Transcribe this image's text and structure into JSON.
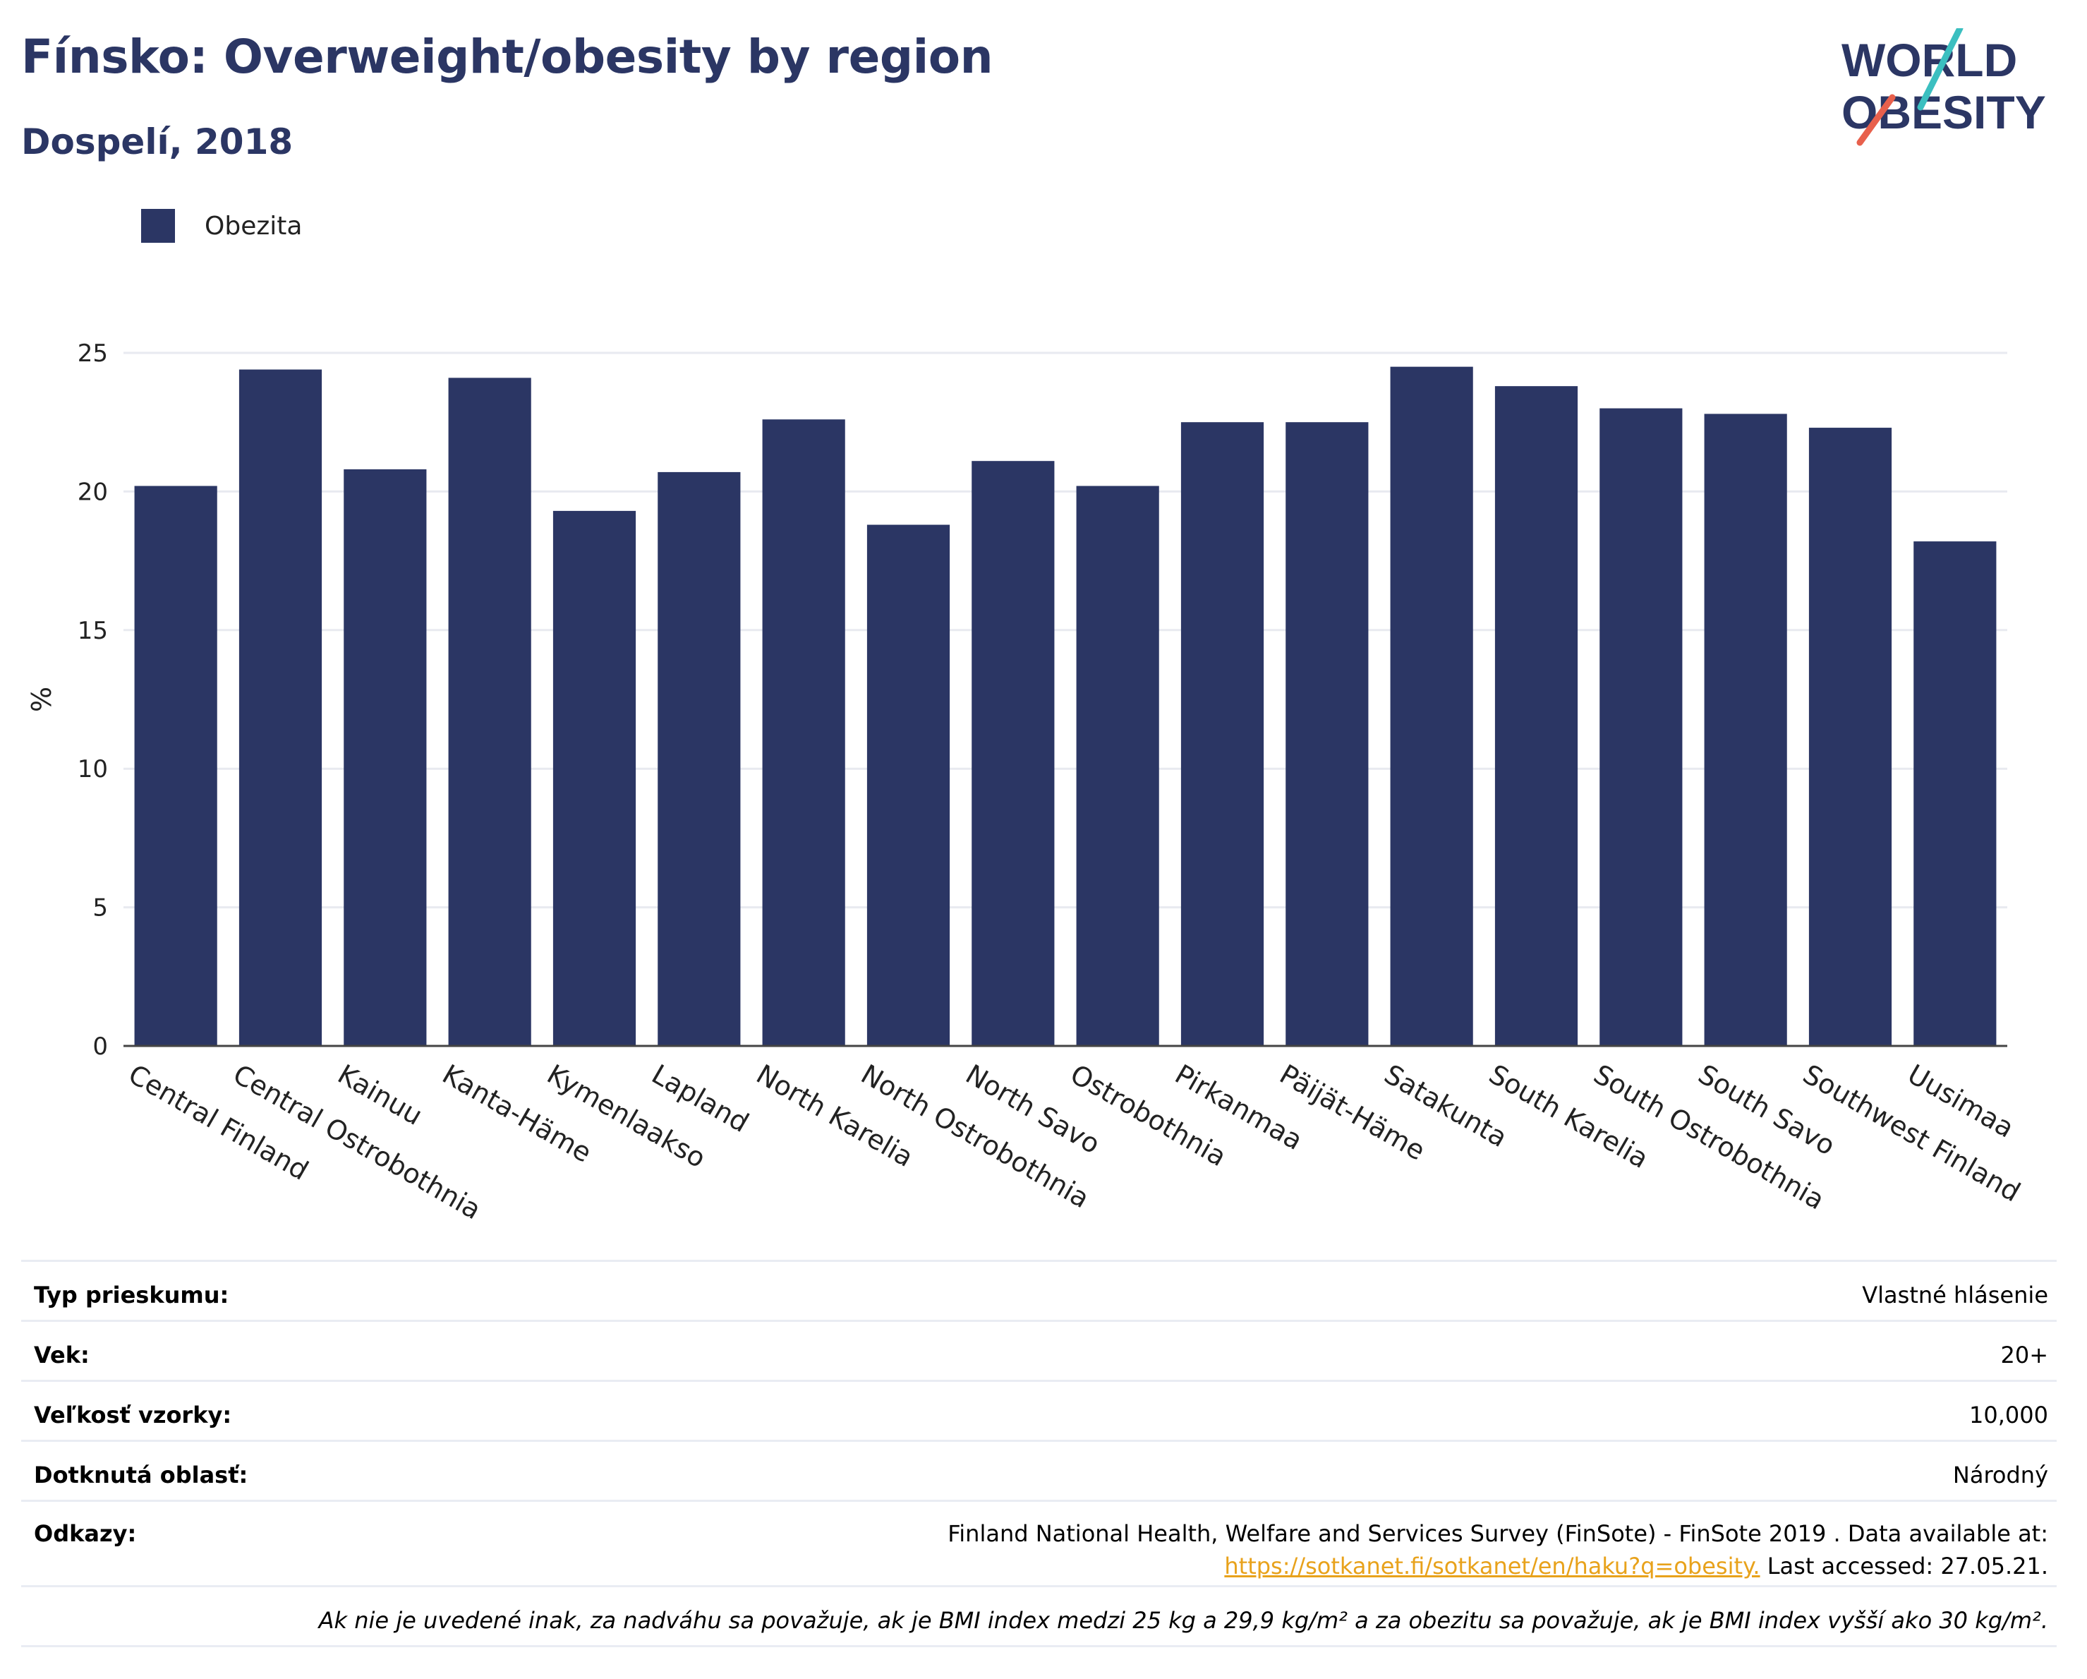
{
  "header": {
    "title": "Fínsko: Overweight/obesity by region",
    "subtitle": "Dospelí, 2018"
  },
  "logo": {
    "line1": "WORLD",
    "line2": "OBESITY",
    "colors": {
      "text": "#2b3664",
      "accent_teal": "#3bbfc0",
      "accent_red": "#e8604c"
    }
  },
  "colors": {
    "bar": "#2b3664",
    "grid": "#e8eaf0",
    "axis": "#444444"
  },
  "chart_data": {
    "type": "bar",
    "title": "Fínsko: Overweight/obesity by region",
    "ylabel": "%",
    "ylim": [
      0,
      25
    ],
    "yticks": [
      0,
      5,
      10,
      15,
      20,
      25
    ],
    "grid": true,
    "legend_position": "top-left",
    "categories": [
      "Central Finland",
      "Central Ostrobothnia",
      "Kainuu",
      "Kanta-Häme",
      "Kymenlaakso",
      "Lapland",
      "North Karelia",
      "North Ostrobothnia",
      "North Savo",
      "Ostrobothnia",
      "Pirkanmaa",
      "Päijät-Häme",
      "Satakunta",
      "South Karelia",
      "South Ostrobothnia",
      "South Savo",
      "Southwest Finland",
      "Uusimaa"
    ],
    "series": [
      {
        "name": "Obezita",
        "values": [
          20.2,
          24.4,
          20.8,
          24.1,
          19.3,
          20.7,
          22.6,
          18.8,
          21.1,
          20.2,
          22.5,
          22.5,
          24.5,
          23.8,
          23.0,
          22.8,
          22.3,
          18.2
        ]
      }
    ]
  },
  "info": {
    "survey_type_label": "Typ prieskumu:",
    "survey_type_value": "Vlastné hlásenie",
    "age_label": "Vek:",
    "age_value": "20+",
    "sample_label": "Veľkosť vzorky:",
    "sample_value": "10,000",
    "area_label": "Dotknutá oblasť:",
    "area_value": "Národný",
    "refs_label": "Odkazy:",
    "refs_line1": "Finland National Health, Welfare and Services Survey (FinSote) - FinSote 2019 . Data available at:",
    "refs_link": "https://sotkanet.fi/sotkanet/en/haku?q=obesity.",
    "refs_tail": " Last accessed: 27.05.21.",
    "footnote": "Ak nie je uvedené inak, za nadváhu sa považuje, ak je BMI index medzi 25 kg a 29,9 kg/m² a za obezitu sa považuje, ak je BMI index vyšší ako 30 kg/m²."
  }
}
